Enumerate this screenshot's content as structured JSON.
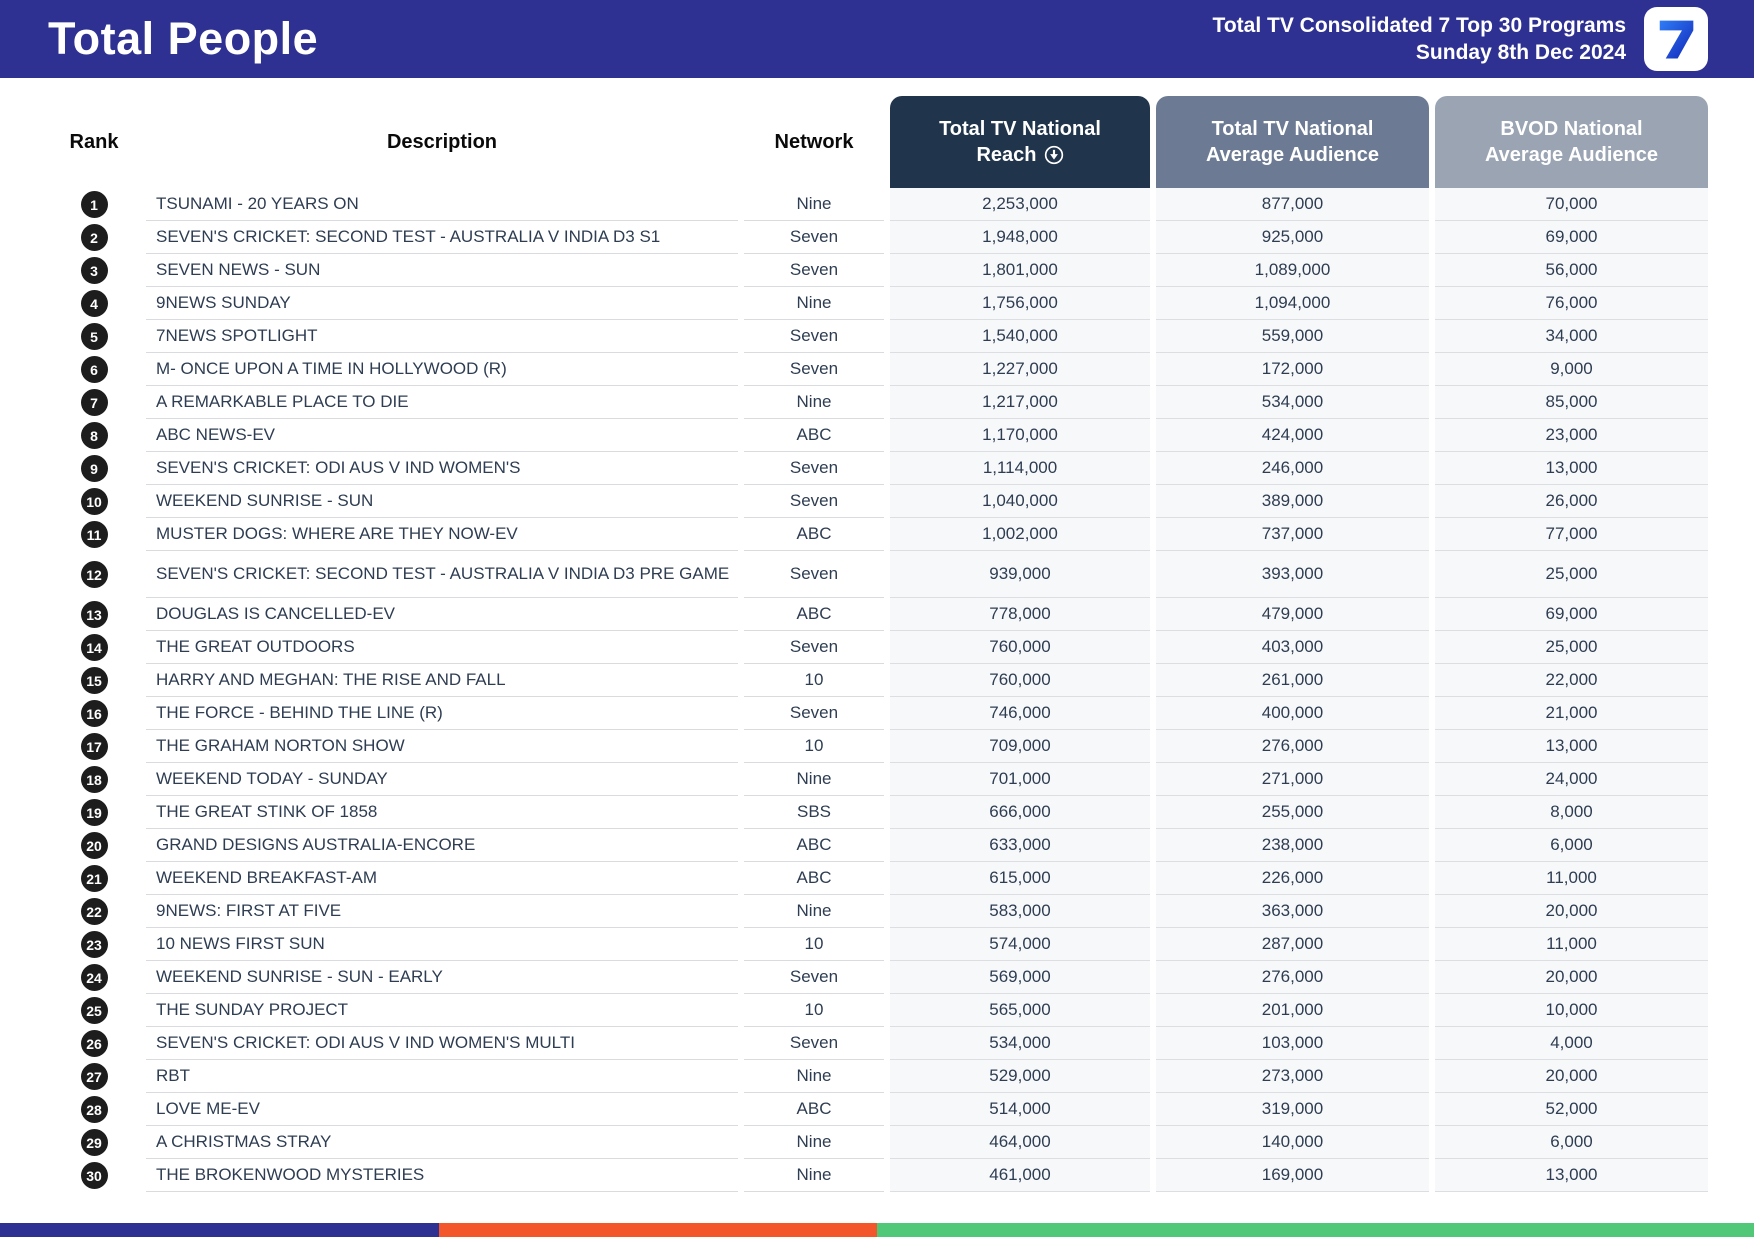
{
  "header": {
    "title": "Total People",
    "subtitle_line1": "Total TV Consolidated 7 Top 30 Programs",
    "subtitle_line2": "Sunday 8th Dec 2024",
    "bg_color": "#2e3192",
    "logo_icon": "seven-network-7-icon",
    "logo_glyph": "7"
  },
  "table": {
    "columns": {
      "rank": {
        "label": "Rank"
      },
      "description": {
        "label": "Description"
      },
      "network": {
        "label": "Network"
      },
      "reach": {
        "line1": "Total TV National",
        "line2": "Reach",
        "bg": "#20344b",
        "sort_icon": "circle-arrow-down-icon",
        "sorted": "descending"
      },
      "avg": {
        "line1": "Total TV National",
        "line2": "Average Audience",
        "bg": "#6c7b93"
      },
      "bvod": {
        "line1": "BVOD National",
        "line2": "Average Audience",
        "bg": "#9aa4b3"
      }
    },
    "rows": [
      {
        "rank": "1",
        "description": "TSUNAMI - 20 YEARS ON",
        "network": "Nine",
        "reach": "2,253,000",
        "avg": "877,000",
        "bvod": "70,000"
      },
      {
        "rank": "2",
        "description": "SEVEN'S CRICKET: SECOND TEST - AUSTRALIA V INDIA D3 S1",
        "network": "Seven",
        "reach": "1,948,000",
        "avg": "925,000",
        "bvod": "69,000"
      },
      {
        "rank": "3",
        "description": "SEVEN NEWS - SUN",
        "network": "Seven",
        "reach": "1,801,000",
        "avg": "1,089,000",
        "bvod": "56,000"
      },
      {
        "rank": "4",
        "description": "9NEWS SUNDAY",
        "network": "Nine",
        "reach": "1,756,000",
        "avg": "1,094,000",
        "bvod": "76,000"
      },
      {
        "rank": "5",
        "description": "7NEWS SPOTLIGHT",
        "network": "Seven",
        "reach": "1,540,000",
        "avg": "559,000",
        "bvod": "34,000"
      },
      {
        "rank": "6",
        "description": "M- ONCE UPON A TIME IN HOLLYWOOD (R)",
        "network": "Seven",
        "reach": "1,227,000",
        "avg": "172,000",
        "bvod": "9,000"
      },
      {
        "rank": "7",
        "description": "A REMARKABLE PLACE TO DIE",
        "network": "Nine",
        "reach": "1,217,000",
        "avg": "534,000",
        "bvod": "85,000"
      },
      {
        "rank": "8",
        "description": "ABC NEWS-EV",
        "network": "ABC",
        "reach": "1,170,000",
        "avg": "424,000",
        "bvod": "23,000"
      },
      {
        "rank": "9",
        "description": "SEVEN'S CRICKET: ODI AUS V IND WOMEN'S",
        "network": "Seven",
        "reach": "1,114,000",
        "avg": "246,000",
        "bvod": "13,000"
      },
      {
        "rank": "10",
        "description": "WEEKEND SUNRISE - SUN",
        "network": "Seven",
        "reach": "1,040,000",
        "avg": "389,000",
        "bvod": "26,000"
      },
      {
        "rank": "11",
        "description": "MUSTER DOGS: WHERE ARE THEY NOW-EV",
        "network": "ABC",
        "reach": "1,002,000",
        "avg": "737,000",
        "bvod": "77,000"
      },
      {
        "rank": "12",
        "description": "SEVEN'S CRICKET: SECOND TEST - AUSTRALIA V INDIA D3 PRE GAME",
        "network": "Seven",
        "reach": "939,000",
        "avg": "393,000",
        "bvod": "25,000",
        "tall": true
      },
      {
        "rank": "13",
        "description": "DOUGLAS IS CANCELLED-EV",
        "network": "ABC",
        "reach": "778,000",
        "avg": "479,000",
        "bvod": "69,000"
      },
      {
        "rank": "14",
        "description": "THE GREAT OUTDOORS",
        "network": "Seven",
        "reach": "760,000",
        "avg": "403,000",
        "bvod": "25,000"
      },
      {
        "rank": "15",
        "description": "HARRY AND MEGHAN: THE RISE AND FALL",
        "network": "10",
        "reach": "760,000",
        "avg": "261,000",
        "bvod": "22,000"
      },
      {
        "rank": "16",
        "description": "THE FORCE - BEHIND THE LINE (R)",
        "network": "Seven",
        "reach": "746,000",
        "avg": "400,000",
        "bvod": "21,000"
      },
      {
        "rank": "17",
        "description": "THE GRAHAM NORTON SHOW",
        "network": "10",
        "reach": "709,000",
        "avg": "276,000",
        "bvod": "13,000"
      },
      {
        "rank": "18",
        "description": "WEEKEND TODAY - SUNDAY",
        "network": "Nine",
        "reach": "701,000",
        "avg": "271,000",
        "bvod": "24,000"
      },
      {
        "rank": "19",
        "description": "THE GREAT STINK OF 1858",
        "network": "SBS",
        "reach": "666,000",
        "avg": "255,000",
        "bvod": "8,000"
      },
      {
        "rank": "20",
        "description": "GRAND DESIGNS AUSTRALIA-ENCORE",
        "network": "ABC",
        "reach": "633,000",
        "avg": "238,000",
        "bvod": "6,000"
      },
      {
        "rank": "21",
        "description": "WEEKEND BREAKFAST-AM",
        "network": "ABC",
        "reach": "615,000",
        "avg": "226,000",
        "bvod": "11,000"
      },
      {
        "rank": "22",
        "description": "9NEWS: FIRST AT FIVE",
        "network": "Nine",
        "reach": "583,000",
        "avg": "363,000",
        "bvod": "20,000"
      },
      {
        "rank": "23",
        "description": "10 NEWS FIRST SUN",
        "network": "10",
        "reach": "574,000",
        "avg": "287,000",
        "bvod": "11,000"
      },
      {
        "rank": "24",
        "description": "WEEKEND SUNRISE - SUN - EARLY",
        "network": "Seven",
        "reach": "569,000",
        "avg": "276,000",
        "bvod": "20,000"
      },
      {
        "rank": "25",
        "description": "THE SUNDAY PROJECT",
        "network": "10",
        "reach": "565,000",
        "avg": "201,000",
        "bvod": "10,000"
      },
      {
        "rank": "26",
        "description": "SEVEN'S CRICKET: ODI AUS V IND WOMEN'S MULTI",
        "network": "Seven",
        "reach": "534,000",
        "avg": "103,000",
        "bvod": "4,000"
      },
      {
        "rank": "27",
        "description": "RBT",
        "network": "Nine",
        "reach": "529,000",
        "avg": "273,000",
        "bvod": "20,000"
      },
      {
        "rank": "28",
        "description": "LOVE ME-EV",
        "network": "ABC",
        "reach": "514,000",
        "avg": "319,000",
        "bvod": "52,000"
      },
      {
        "rank": "29",
        "description": "A CHRISTMAS STRAY",
        "network": "Nine",
        "reach": "464,000",
        "avg": "140,000",
        "bvod": "6,000"
      },
      {
        "rank": "30",
        "description": "THE BROKENWOOD MYSTERIES",
        "network": "Nine",
        "reach": "461,000",
        "avg": "169,000",
        "bvod": "13,000"
      }
    ]
  },
  "footer": {
    "segments": [
      {
        "name": "navy-segment",
        "color": "#2e3192",
        "width_pct": 25
      },
      {
        "name": "orange-segment",
        "color": "#f3562b",
        "width_pct": 25
      },
      {
        "name": "green-segment",
        "color": "#50c878",
        "width_pct": 50
      }
    ]
  }
}
